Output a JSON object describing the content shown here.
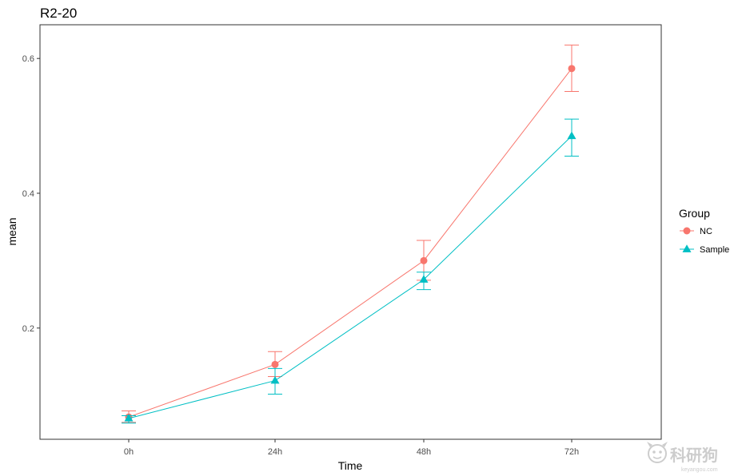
{
  "chart_data": {
    "type": "line",
    "title": "R2-20",
    "xlabel": "Time",
    "ylabel": "mean",
    "categories": [
      "0h",
      "24h",
      "48h",
      "72h"
    ],
    "ylim": [
      0.035,
      0.65
    ],
    "yticks": [
      0.2,
      0.4,
      0.6
    ],
    "ytick_labels": [
      "0.2",
      "0.4",
      "0.6"
    ],
    "grid": false,
    "legend": {
      "title": "Group",
      "position": "right"
    },
    "series": [
      {
        "name": "NC",
        "color": "#F8766D",
        "marker": "circle",
        "values": [
          0.068,
          0.146,
          0.3,
          0.585
        ],
        "error_low": [
          0.06,
          0.128,
          0.271,
          0.551
        ],
        "error_high": [
          0.077,
          0.165,
          0.33,
          0.62
        ]
      },
      {
        "name": "Sample",
        "color": "#00BFC4",
        "marker": "triangle",
        "values": [
          0.066,
          0.122,
          0.272,
          0.485
        ],
        "error_low": [
          0.059,
          0.102,
          0.257,
          0.455
        ],
        "error_high": [
          0.07,
          0.14,
          0.283,
          0.51
        ]
      }
    ]
  },
  "watermark": {
    "text": "科研狗",
    "sub": "keyangou.com",
    "icon": "dog-face-icon",
    "color": "#c8c8c8"
  }
}
